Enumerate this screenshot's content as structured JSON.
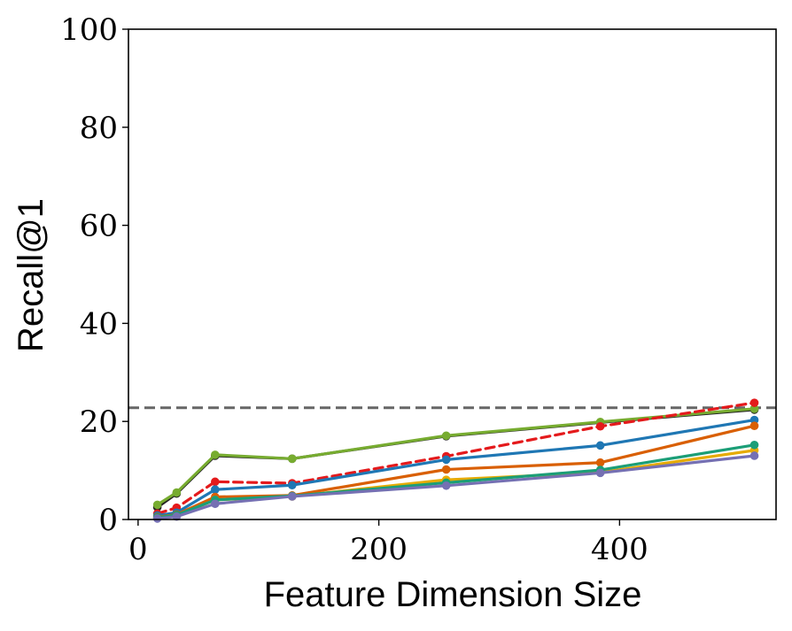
{
  "chart_data": {
    "type": "line",
    "title": "",
    "xlabel": "Feature Dimension Size",
    "ylabel": "Recall@1",
    "xlim": [
      -8,
      530
    ],
    "ylim": [
      0,
      100
    ],
    "xticks": [
      0,
      200,
      400
    ],
    "yticks": [
      0,
      20,
      40,
      60,
      80,
      100
    ],
    "x": [
      16,
      32,
      64,
      128,
      256,
      384,
      512
    ],
    "grid": false,
    "legend": "none",
    "reference_line": {
      "y": 22.8,
      "style": "dashed",
      "color": "#666666"
    },
    "series": [
      {
        "color": "#222222",
        "style": "solid",
        "values": [
          2.5,
          5.3,
          13.0,
          12.4,
          17.0,
          19.8,
          22.4
        ]
      },
      {
        "color": "#77ac30",
        "style": "solid",
        "values": [
          3.0,
          5.5,
          13.2,
          12.4,
          17.1,
          19.9,
          22.6
        ]
      },
      {
        "color": "#e41a1c",
        "style": "dashed",
        "values": [
          1.2,
          2.4,
          7.7,
          7.4,
          12.9,
          19.0,
          23.8
        ]
      },
      {
        "color": "#1f77b4",
        "style": "solid",
        "values": [
          0.8,
          1.4,
          6.1,
          7.0,
          12.2,
          15.1,
          20.3
        ]
      },
      {
        "color": "#d95f02",
        "style": "solid",
        "values": [
          0.5,
          1.0,
          4.6,
          4.9,
          10.2,
          11.6,
          19.1
        ]
      },
      {
        "color": "#e6ab02",
        "style": "solid",
        "values": [
          0.3,
          0.8,
          4.0,
          4.7,
          8.1,
          9.6,
          14.1
        ]
      },
      {
        "color": "#1b9e77",
        "style": "solid",
        "values": [
          0.4,
          0.9,
          4.0,
          4.8,
          7.5,
          10.1,
          15.2
        ]
      },
      {
        "color": "#7570b3",
        "style": "solid",
        "values": [
          0.2,
          0.6,
          3.2,
          4.7,
          6.9,
          9.5,
          13.0
        ]
      }
    ]
  }
}
